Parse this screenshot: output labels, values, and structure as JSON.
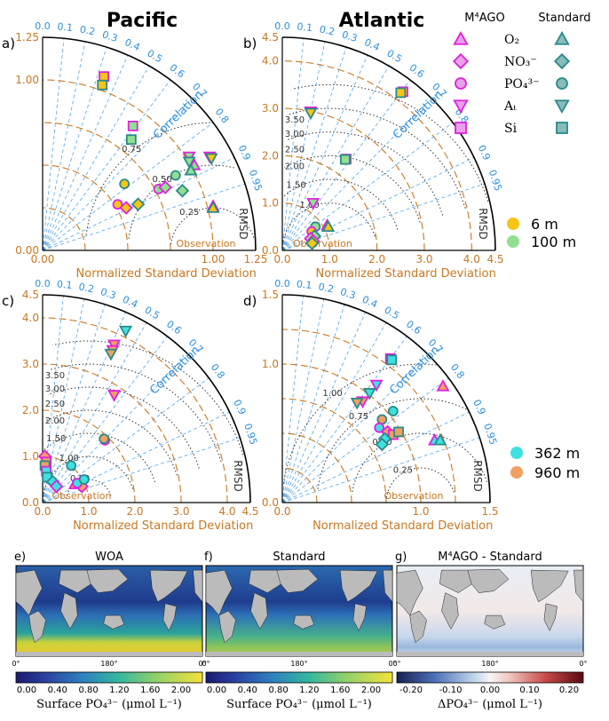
{
  "headers": {
    "pacific": "Pacific",
    "atlantic": "Atlantic"
  },
  "legend": {
    "m4ago_title": "M⁴AGO",
    "standard_title": "Standard",
    "variables": [
      "O₂",
      "NO₃⁻",
      "PO₄³⁻",
      "Aₜ",
      "Si"
    ],
    "depths_top": [
      "6 m",
      "100 m"
    ],
    "depths_bottom": [
      "362 m",
      "960 m"
    ]
  },
  "colors": {
    "m4ago": "#e020e0",
    "standard": "#2a8a8a",
    "depth_6m": "#f5c518",
    "depth_100m": "#90e090",
    "depth_362m": "#40e0e0",
    "depth_960m": "#f0a060",
    "axis": "#c87820",
    "correlation": "#2a90e0",
    "rmsd": "#333333"
  },
  "chart_data": [
    {
      "type": "scatter",
      "subtype": "taylor",
      "panel": "a)",
      "region": "Pacific",
      "depths": "6 m, 100 m",
      "xlabel": "Normalized Standard Deviation",
      "xlim": [
        0,
        1.25
      ],
      "xticks": [
        "0.00",
        "1.00",
        "1.25"
      ],
      "yticks": [
        "0.00",
        "1.00",
        "1.25"
      ],
      "rmsd_labels": [
        "0.75",
        "0.50",
        "0.25"
      ],
      "correlation_ticks": [
        "0.0",
        "0.1",
        "0.2",
        "0.3",
        "0.4",
        "0.5",
        "0.6",
        "0.7",
        "0.8",
        "0.9",
        "0.95"
      ],
      "correlation_label": "Correlation",
      "rmsd_label": "RMSD",
      "observation_label": "Observation",
      "points": [
        {
          "x": 0.36,
          "y": 1.02,
          "marker": "square",
          "model": "M4AGO",
          "fill": "depth_6m"
        },
        {
          "x": 0.35,
          "y": 0.97,
          "marker": "square",
          "model": "Standard",
          "fill": "depth_6m"
        },
        {
          "x": 0.53,
          "y": 0.73,
          "marker": "square",
          "model": "M4AGO",
          "fill": "depth_100m"
        },
        {
          "x": 0.52,
          "y": 0.65,
          "marker": "square",
          "model": "Standard",
          "fill": "depth_100m"
        },
        {
          "x": 0.48,
          "y": 0.39,
          "marker": "circle",
          "model": "Standard",
          "fill": "depth_6m"
        },
        {
          "x": 0.44,
          "y": 0.27,
          "marker": "circle",
          "model": "M4AGO",
          "fill": "depth_6m"
        },
        {
          "x": 0.68,
          "y": 0.36,
          "marker": "circle",
          "model": "M4AGO",
          "fill": "depth_100m"
        },
        {
          "x": 0.78,
          "y": 0.44,
          "marker": "circle",
          "model": "Standard",
          "fill": "depth_100m"
        },
        {
          "x": 0.49,
          "y": 0.25,
          "marker": "diamond",
          "model": "M4AGO",
          "fill": "depth_6m"
        },
        {
          "x": 0.56,
          "y": 0.27,
          "marker": "diamond",
          "model": "Standard",
          "fill": "depth_6m"
        },
        {
          "x": 0.72,
          "y": 0.37,
          "marker": "diamond",
          "model": "M4AGO",
          "fill": "depth_100m"
        },
        {
          "x": 0.82,
          "y": 0.35,
          "marker": "diamond",
          "model": "Standard",
          "fill": "depth_100m"
        },
        {
          "x": 0.86,
          "y": 0.55,
          "marker": "tri_down",
          "model": "M4AGO",
          "fill": "depth_100m"
        },
        {
          "x": 0.86,
          "y": 0.52,
          "marker": "tri_down",
          "model": "Standard",
          "fill": "depth_100m"
        },
        {
          "x": 0.98,
          "y": 0.55,
          "marker": "tri_down",
          "model": "M4AGO",
          "fill": "depth_6m"
        },
        {
          "x": 0.99,
          "y": 0.54,
          "marker": "tri_down",
          "model": "Standard",
          "fill": "depth_6m"
        },
        {
          "x": 0.89,
          "y": 0.5,
          "marker": "tri_up",
          "model": "M4AGO",
          "fill": "depth_100m"
        },
        {
          "x": 0.87,
          "y": 0.47,
          "marker": "tri_up",
          "model": "Standard",
          "fill": "depth_100m"
        },
        {
          "x": 1.0,
          "y": 0.26,
          "marker": "tri_up",
          "model": "M4AGO",
          "fill": "depth_6m"
        },
        {
          "x": 1.0,
          "y": 0.25,
          "marker": "tri_up",
          "model": "Standard",
          "fill": "depth_6m"
        }
      ]
    },
    {
      "type": "scatter",
      "subtype": "taylor",
      "panel": "b)",
      "region": "Atlantic",
      "depths": "6 m, 100 m",
      "xlabel": "Normalized Standard Deviation",
      "xlim": [
        0,
        4.5
      ],
      "xticks": [
        "0.0",
        "1.0",
        "2.0",
        "3.0",
        "4.0",
        "4.5"
      ],
      "yticks": [
        "0.0",
        "1.0",
        "2.0",
        "3.0",
        "4.0",
        "4.5"
      ],
      "rmsd_labels": [
        "3.50",
        "3.00",
        "2.50",
        "2.00",
        "1.50",
        "1.00"
      ],
      "correlation_ticks": [
        "0.0",
        "0.1",
        "0.2",
        "0.3",
        "0.4",
        "0.5",
        "0.6",
        "0.7",
        "0.8",
        "0.9",
        "0.95"
      ],
      "correlation_label": "Correlation",
      "rmsd_label": "RMSD",
      "observation_label": "Observation",
      "points": [
        {
          "x": 2.55,
          "y": 3.35,
          "marker": "square",
          "model": "M4AGO",
          "fill": "depth_6m"
        },
        {
          "x": 2.5,
          "y": 3.33,
          "marker": "square",
          "model": "Standard",
          "fill": "depth_6m"
        },
        {
          "x": 1.35,
          "y": 1.93,
          "marker": "square",
          "model": "M4AGO",
          "fill": "depth_100m"
        },
        {
          "x": 1.33,
          "y": 1.92,
          "marker": "square",
          "model": "Standard",
          "fill": "depth_100m"
        },
        {
          "x": 0.6,
          "y": 2.93,
          "marker": "tri_down",
          "model": "M4AGO",
          "fill": "depth_6m"
        },
        {
          "x": 0.6,
          "y": 2.9,
          "marker": "tri_down",
          "model": "Standard",
          "fill": "depth_6m"
        },
        {
          "x": 0.65,
          "y": 1.0,
          "marker": "tri_down",
          "model": "M4AGO",
          "fill": "depth_100m"
        },
        {
          "x": 0.95,
          "y": 0.53,
          "marker": "tri_up",
          "model": "M4AGO",
          "fill": "depth_6m"
        },
        {
          "x": 0.97,
          "y": 0.5,
          "marker": "tri_up",
          "model": "Standard",
          "fill": "depth_6m"
        },
        {
          "x": 0.7,
          "y": 0.5,
          "marker": "circle",
          "model": "Standard",
          "fill": "depth_100m"
        },
        {
          "x": 0.62,
          "y": 0.4,
          "marker": "circle",
          "model": "M4AGO",
          "fill": "depth_6m"
        },
        {
          "x": 0.68,
          "y": 0.3,
          "marker": "diamond",
          "model": "Standard",
          "fill": "depth_100m"
        },
        {
          "x": 0.6,
          "y": 0.25,
          "marker": "diamond",
          "model": "M4AGO",
          "fill": "depth_100m"
        },
        {
          "x": 0.65,
          "y": 0.2,
          "marker": "diamond",
          "model": "M4AGO",
          "fill": "depth_6m"
        },
        {
          "x": 0.63,
          "y": 0.15,
          "marker": "diamond",
          "model": "Standard",
          "fill": "depth_6m"
        }
      ]
    },
    {
      "type": "scatter",
      "subtype": "taylor",
      "panel": "c)",
      "region": "Pacific",
      "depths": "362 m, 960 m",
      "xlabel": "Normalized Standard Deviation",
      "xlim": [
        0,
        4.5
      ],
      "xticks": [
        "0.0",
        "1.0",
        "2.0",
        "3.0",
        "4.0",
        "4.5"
      ],
      "yticks": [
        "0.0",
        "1.0",
        "2.0",
        "3.0",
        "4.0",
        "4.5"
      ],
      "rmsd_labels": [
        "3.50",
        "3.00",
        "2.50",
        "2.00",
        "1.50",
        "1.00",
        "0.50"
      ],
      "correlation_ticks": [
        "0.0",
        "0.1",
        "0.2",
        "0.3",
        "0.4",
        "0.5",
        "0.6",
        "0.7",
        "0.8",
        "0.9",
        "0.95"
      ],
      "correlation_label": "Correlation",
      "rmsd_label": "RMSD",
      "observation_label": "Observation",
      "points": [
        {
          "x": 1.8,
          "y": 3.72,
          "marker": "tri_down",
          "model": "Standard",
          "fill": "depth_362m"
        },
        {
          "x": 1.55,
          "y": 3.42,
          "marker": "tri_down",
          "model": "M4AGO",
          "fill": "depth_960m"
        },
        {
          "x": 1.52,
          "y": 3.3,
          "marker": "tri_down",
          "model": "M4AGO",
          "fill": "depth_960m"
        },
        {
          "x": 1.48,
          "y": 3.22,
          "marker": "tri_down",
          "model": "Standard",
          "fill": "depth_960m"
        },
        {
          "x": 1.55,
          "y": 2.33,
          "marker": "tri_down",
          "model": "M4AGO",
          "fill": "depth_960m"
        },
        {
          "x": 1.35,
          "y": 1.35,
          "marker": "circle",
          "model": "M4AGO",
          "fill": "depth_960m"
        },
        {
          "x": 1.33,
          "y": 1.38,
          "marker": "circle",
          "model": "Standard",
          "fill": "depth_960m"
        },
        {
          "x": 0.62,
          "y": 0.8,
          "marker": "circle",
          "model": "Standard",
          "fill": "depth_362m"
        },
        {
          "x": 0.05,
          "y": 1.0,
          "marker": "diamond",
          "model": "M4AGO",
          "fill": "depth_960m"
        },
        {
          "x": 0.08,
          "y": 0.88,
          "marker": "square",
          "model": "M4AGO",
          "fill": "depth_960m"
        },
        {
          "x": 0.05,
          "y": 0.8,
          "marker": "square",
          "model": "Standard",
          "fill": "depth_960m"
        },
        {
          "x": 0.08,
          "y": 0.68,
          "marker": "square",
          "model": "M4AGO",
          "fill": "depth_362m"
        },
        {
          "x": 0.1,
          "y": 0.55,
          "marker": "square",
          "model": "Standard",
          "fill": "depth_362m"
        },
        {
          "x": 0.22,
          "y": 0.45,
          "marker": "diamond",
          "model": "Standard",
          "fill": "depth_362m"
        },
        {
          "x": 0.3,
          "y": 0.35,
          "marker": "diamond",
          "model": "M4AGO",
          "fill": "depth_362m"
        },
        {
          "x": 0.7,
          "y": 0.4,
          "marker": "tri_up",
          "model": "M4AGO",
          "fill": "depth_960m"
        },
        {
          "x": 0.82,
          "y": 0.45,
          "marker": "tri_up",
          "model": "M4AGO",
          "fill": "depth_362m"
        },
        {
          "x": 0.85,
          "y": 0.35,
          "marker": "diamond",
          "model": "M4AGO",
          "fill": "depth_960m"
        },
        {
          "x": 0.75,
          "y": 0.42,
          "marker": "circle",
          "model": "M4AGO",
          "fill": "depth_362m"
        },
        {
          "x": 0.9,
          "y": 0.5,
          "marker": "circle",
          "model": "Standard",
          "fill": "depth_362m"
        }
      ]
    },
    {
      "type": "scatter",
      "subtype": "taylor",
      "panel": "d)",
      "region": "Atlantic",
      "depths": "362 m, 960 m",
      "xlabel": "Normalized Standard Deviation",
      "xlim": [
        0,
        1.5
      ],
      "xticks": [
        "0.0",
        "1.0",
        "1.5"
      ],
      "yticks": [
        "0.0",
        "1.0",
        "1.5"
      ],
      "rmsd_labels": [
        "1.00",
        "0.75",
        "0.50",
        "0.25"
      ],
      "correlation_ticks": [
        "0.0",
        "0.1",
        "0.2",
        "0.3",
        "0.4",
        "0.5",
        "0.6",
        "0.7",
        "0.8",
        "0.9",
        "0.95"
      ],
      "correlation_label": "Correlation",
      "rmsd_label": "RMSD",
      "observation_label": "Observation",
      "points": [
        {
          "x": 0.78,
          "y": 1.04,
          "marker": "square",
          "model": "M4AGO",
          "fill": "depth_362m"
        },
        {
          "x": 0.79,
          "y": 1.03,
          "marker": "square",
          "model": "Standard",
          "fill": "depth_362m"
        },
        {
          "x": 1.16,
          "y": 0.84,
          "marker": "tri_up",
          "model": "M4AGO",
          "fill": "depth_960m"
        },
        {
          "x": 0.68,
          "y": 0.85,
          "marker": "tri_down",
          "model": "M4AGO",
          "fill": "depth_362m"
        },
        {
          "x": 0.63,
          "y": 0.79,
          "marker": "tri_down",
          "model": "Standard",
          "fill": "depth_362m"
        },
        {
          "x": 0.58,
          "y": 0.73,
          "marker": "tri_down",
          "model": "M4AGO",
          "fill": "depth_960m"
        },
        {
          "x": 0.54,
          "y": 0.72,
          "marker": "tri_down",
          "model": "Standard",
          "fill": "depth_960m"
        },
        {
          "x": 0.8,
          "y": 0.66,
          "marker": "circle",
          "model": "Standard",
          "fill": "depth_362m"
        },
        {
          "x": 0.72,
          "y": 0.6,
          "marker": "circle",
          "model": "Standard",
          "fill": "depth_960m"
        },
        {
          "x": 0.7,
          "y": 0.54,
          "marker": "circle",
          "model": "M4AGO",
          "fill": "depth_362m"
        },
        {
          "x": 0.76,
          "y": 0.51,
          "marker": "diamond",
          "model": "M4AGO",
          "fill": "depth_960m"
        },
        {
          "x": 0.8,
          "y": 0.49,
          "marker": "square",
          "model": "M4AGO",
          "fill": "depth_960m"
        },
        {
          "x": 0.84,
          "y": 0.51,
          "marker": "square",
          "model": "Standard",
          "fill": "depth_960m"
        },
        {
          "x": 0.74,
          "y": 0.46,
          "marker": "diamond",
          "model": "Standard",
          "fill": "depth_362m"
        },
        {
          "x": 0.72,
          "y": 0.42,
          "marker": "diamond",
          "model": "Standard",
          "fill": "depth_362m"
        },
        {
          "x": 1.1,
          "y": 0.45,
          "marker": "tri_up",
          "model": "M4AGO",
          "fill": "depth_362m"
        },
        {
          "x": 1.14,
          "y": 0.45,
          "marker": "tri_up",
          "model": "Standard",
          "fill": "depth_362m"
        }
      ]
    },
    {
      "type": "heatmap",
      "panel": "e)",
      "title": "WOA",
      "xticks": [
        "0°",
        "180°",
        "0°"
      ],
      "colorbar_ticks": [
        "0.00",
        "0.40",
        "0.80",
        "1.20",
        "1.60",
        "2.00"
      ],
      "colorbar_label": "Surface PO₄³⁻ (μmol L⁻¹)"
    },
    {
      "type": "heatmap",
      "panel": "f)",
      "title": "Standard",
      "xticks": [
        "0°",
        "180°",
        "0°"
      ],
      "colorbar_ticks": [
        "0.00",
        "0.40",
        "0.80",
        "1.20",
        "1.60",
        "2.00"
      ],
      "colorbar_label": "Surface PO₄³⁻ (μmol L⁻¹)"
    },
    {
      "type": "heatmap",
      "panel": "g)",
      "title": "M⁴AGO - Standard",
      "xticks": [
        "0°",
        "180°",
        "0°"
      ],
      "colorbar_ticks": [
        "-0.20",
        "-0.10",
        "0.00",
        "0.10",
        "0.20"
      ],
      "colorbar_label": "ΔPO₄³⁻ (μmol L⁻¹)"
    }
  ]
}
